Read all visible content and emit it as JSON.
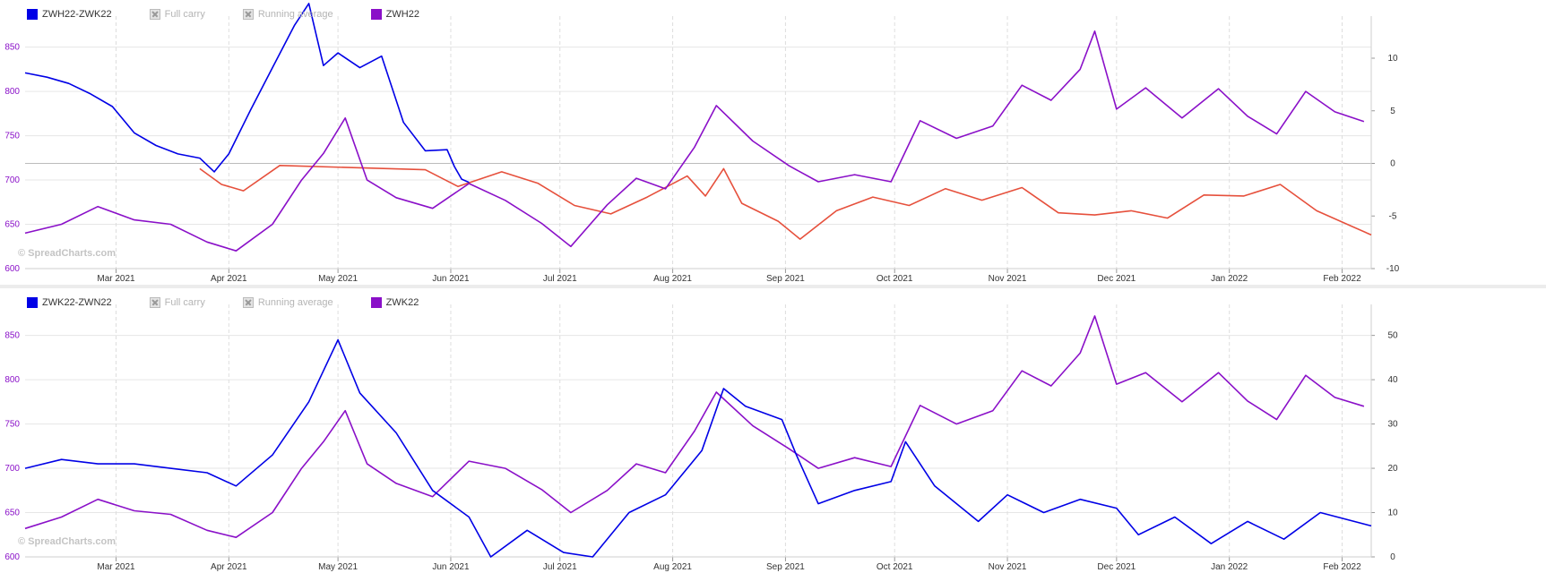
{
  "watermark": "© SpreadCharts.com",
  "colors": {
    "spread": "#0000e6",
    "outright": "#8a10c8",
    "carry": "#e6503c",
    "left_axis": "#8a10c8",
    "right_axis": "#333333",
    "grid": "#e6e6e6"
  },
  "chart_data": [
    {
      "type": "line",
      "legend": [
        {
          "label": "ZWH22-ZWK22",
          "color": "#0000e6",
          "enabled": true
        },
        {
          "label": "Full carry",
          "enabled": false
        },
        {
          "label": "Running average",
          "enabled": false
        },
        {
          "label": "ZWH22",
          "color": "#8a10c8",
          "enabled": true
        }
      ],
      "x_ticks": [
        "Mar 2021",
        "Apr 2021",
        "May 2021",
        "Jun 2021",
        "Jul 2021",
        "Aug 2021",
        "Sep 2021",
        "Oct 2021",
        "Nov 2021",
        "Dec 2021",
        "Jan 2022",
        "Feb 2022"
      ],
      "y_left_ticks": [
        600,
        650,
        700,
        750,
        800,
        850
      ],
      "y_right_ticks": [
        -10,
        -5,
        0,
        5,
        10
      ],
      "y_left_range": [
        600,
        885
      ],
      "y_right_range": [
        -10,
        14
      ],
      "x_range": [
        "2021-02-04",
        "2022-02-09"
      ],
      "series": [
        {
          "name": "ZWH22-ZWK22",
          "axis": "right",
          "color": "#0000e6",
          "role": "spread",
          "x": [
            "2021-02-04",
            "2021-02-10",
            "2021-02-16",
            "2021-02-22",
            "2021-02-28",
            "2021-03-06",
            "2021-03-12",
            "2021-03-18",
            "2021-03-24",
            "2021-03-28",
            "2021-04-01",
            "2021-04-07",
            "2021-04-13",
            "2021-04-19",
            "2021-04-23",
            "2021-04-27",
            "2021-05-01",
            "2021-05-07",
            "2021-05-13",
            "2021-05-19",
            "2021-05-25",
            "2021-05-31",
            "2021-06-02",
            "2021-06-04",
            "2021-06-06"
          ],
          "values": [
            8.6,
            8.2,
            7.6,
            6.6,
            5.4,
            2.9,
            1.7,
            0.9,
            0.5,
            -0.8,
            0.9,
            5.1,
            9.1,
            13.1,
            15.2,
            9.3,
            10.5,
            9.1,
            10.2,
            3.9,
            1.2,
            1.3,
            -0.3,
            -1.5,
            -1.8
          ]
        },
        {
          "name": "ZWH22",
          "axis": "left",
          "color": "#8a10c8",
          "role": "outright",
          "x": [
            "2021-02-04",
            "2021-02-14",
            "2021-02-24",
            "2021-03-06",
            "2021-03-16",
            "2021-03-26",
            "2021-04-03",
            "2021-04-13",
            "2021-04-21",
            "2021-04-27",
            "2021-05-03",
            "2021-05-09",
            "2021-05-17",
            "2021-05-27",
            "2021-06-06",
            "2021-06-16",
            "2021-06-26",
            "2021-07-04",
            "2021-07-14",
            "2021-07-22",
            "2021-07-30",
            "2021-08-07",
            "2021-08-13",
            "2021-08-23",
            "2021-09-02",
            "2021-09-10",
            "2021-09-20",
            "2021-09-30",
            "2021-10-08",
            "2021-10-18",
            "2021-10-28",
            "2021-11-05",
            "2021-11-13",
            "2021-11-21",
            "2021-11-25",
            "2021-12-01",
            "2021-12-09",
            "2021-12-19",
            "2021-12-29",
            "2022-01-06",
            "2022-01-14",
            "2022-01-22",
            "2022-01-30",
            "2022-02-07"
          ],
          "values": [
            640,
            650,
            670,
            655,
            650,
            630,
            620,
            650,
            700,
            730,
            770,
            700,
            680,
            668,
            696,
            677,
            651,
            625,
            672,
            702,
            690,
            737,
            784,
            744,
            716,
            698,
            706,
            698,
            767,
            747,
            761,
            807,
            790,
            825,
            868,
            780,
            804,
            770,
            803,
            772,
            752,
            800,
            777,
            766
          ]
        },
        {
          "name": "",
          "axis": "right",
          "color": "#e6503c",
          "role": "carry",
          "x": [
            "2021-03-24",
            "2021-03-30",
            "2021-04-05",
            "2021-04-15",
            "2021-05-25",
            "2021-06-03",
            "2021-06-15",
            "2021-06-25",
            "2021-07-05",
            "2021-07-15",
            "2021-07-25",
            "2021-08-05",
            "2021-08-10",
            "2021-08-15",
            "2021-08-20",
            "2021-08-30",
            "2021-09-05",
            "2021-09-15",
            "2021-09-25",
            "2021-10-05",
            "2021-10-15",
            "2021-10-25",
            "2021-11-05",
            "2021-11-15",
            "2021-11-25",
            "2021-12-05",
            "2021-12-15",
            "2021-12-25",
            "2022-01-05",
            "2022-01-15",
            "2022-01-25",
            "2022-02-09"
          ],
          "values": [
            -0.5,
            -2.0,
            -2.6,
            -0.2,
            -0.6,
            -2.2,
            -0.8,
            -1.9,
            -4.0,
            -4.8,
            -3.2,
            -1.2,
            -3.1,
            -0.5,
            -3.8,
            -5.5,
            -7.2,
            -4.5,
            -3.2,
            -4.0,
            -2.4,
            -3.5,
            -2.3,
            -4.7,
            -4.9,
            -4.5,
            -5.2,
            -3.0,
            -3.1,
            -2.0,
            -4.5,
            -6.8
          ]
        }
      ]
    },
    {
      "type": "line",
      "legend": [
        {
          "label": "ZWK22-ZWN22",
          "color": "#0000e6",
          "enabled": true
        },
        {
          "label": "Full carry",
          "enabled": false
        },
        {
          "label": "Running average",
          "enabled": false
        },
        {
          "label": "ZWK22",
          "color": "#8a10c8",
          "enabled": true
        }
      ],
      "x_ticks": [
        "Mar 2021",
        "Apr 2021",
        "May 2021",
        "Jun 2021",
        "Jul 2021",
        "Aug 2021",
        "Sep 2021",
        "Oct 2021",
        "Nov 2021",
        "Dec 2021",
        "Jan 2022",
        "Feb 2022"
      ],
      "y_left_ticks": [
        600,
        650,
        700,
        750,
        800,
        850
      ],
      "y_right_ticks": [
        0,
        10,
        20,
        30,
        40,
        50
      ],
      "y_left_range": [
        600,
        885
      ],
      "y_right_range": [
        0,
        57
      ],
      "x_range": [
        "2021-02-04",
        "2022-02-09"
      ],
      "series": [
        {
          "name": "ZWK22-ZWN22",
          "axis": "right",
          "color": "#0000e6",
          "role": "spread",
          "x": [
            "2021-02-04",
            "2021-02-14",
            "2021-02-24",
            "2021-03-06",
            "2021-03-16",
            "2021-03-26",
            "2021-04-03",
            "2021-04-13",
            "2021-04-23",
            "2021-05-01",
            "2021-05-07",
            "2021-05-17",
            "2021-05-27",
            "2021-06-06",
            "2021-06-12",
            "2021-06-22",
            "2021-07-02",
            "2021-07-10",
            "2021-07-20",
            "2021-07-30",
            "2021-08-09",
            "2021-08-15",
            "2021-08-21",
            "2021-08-31",
            "2021-09-04",
            "2021-09-10",
            "2021-09-20",
            "2021-09-30",
            "2021-10-04",
            "2021-10-12",
            "2021-10-24",
            "2021-11-01",
            "2021-11-11",
            "2021-11-21",
            "2021-12-01",
            "2021-12-07",
            "2021-12-17",
            "2021-12-27",
            "2022-01-06",
            "2022-01-16",
            "2022-01-26",
            "2022-02-09"
          ],
          "values": [
            20,
            22,
            21,
            21,
            20,
            19,
            16,
            23,
            35,
            49,
            37,
            28,
            15,
            9,
            0,
            6,
            1,
            0,
            10,
            14,
            24,
            38,
            34,
            31,
            23,
            12,
            15,
            17,
            26,
            16,
            8,
            14,
            10,
            13,
            11,
            5,
            9,
            3,
            8,
            4,
            10,
            7
          ]
        },
        {
          "name": "ZWK22",
          "axis": "left",
          "color": "#8a10c8",
          "role": "outright",
          "x": [
            "2021-02-04",
            "2021-02-14",
            "2021-02-24",
            "2021-03-06",
            "2021-03-16",
            "2021-03-26",
            "2021-04-03",
            "2021-04-13",
            "2021-04-21",
            "2021-04-27",
            "2021-05-03",
            "2021-05-09",
            "2021-05-17",
            "2021-05-27",
            "2021-06-06",
            "2021-06-16",
            "2021-06-26",
            "2021-07-04",
            "2021-07-14",
            "2021-07-22",
            "2021-07-30",
            "2021-08-07",
            "2021-08-13",
            "2021-08-23",
            "2021-09-02",
            "2021-09-10",
            "2021-09-20",
            "2021-09-30",
            "2021-10-08",
            "2021-10-18",
            "2021-10-28",
            "2021-11-05",
            "2021-11-13",
            "2021-11-21",
            "2021-11-25",
            "2021-12-01",
            "2021-12-09",
            "2021-12-19",
            "2021-12-29",
            "2022-01-06",
            "2022-01-14",
            "2022-01-22",
            "2022-01-30",
            "2022-02-07"
          ],
          "values": [
            632,
            645,
            665,
            652,
            648,
            630,
            622,
            650,
            700,
            730,
            765,
            705,
            683,
            668,
            708,
            700,
            676,
            650,
            675,
            705,
            695,
            742,
            786,
            748,
            722,
            700,
            712,
            702,
            771,
            750,
            765,
            810,
            793,
            830,
            872,
            795,
            808,
            775,
            808,
            776,
            755,
            805,
            780,
            770
          ]
        }
      ]
    }
  ]
}
